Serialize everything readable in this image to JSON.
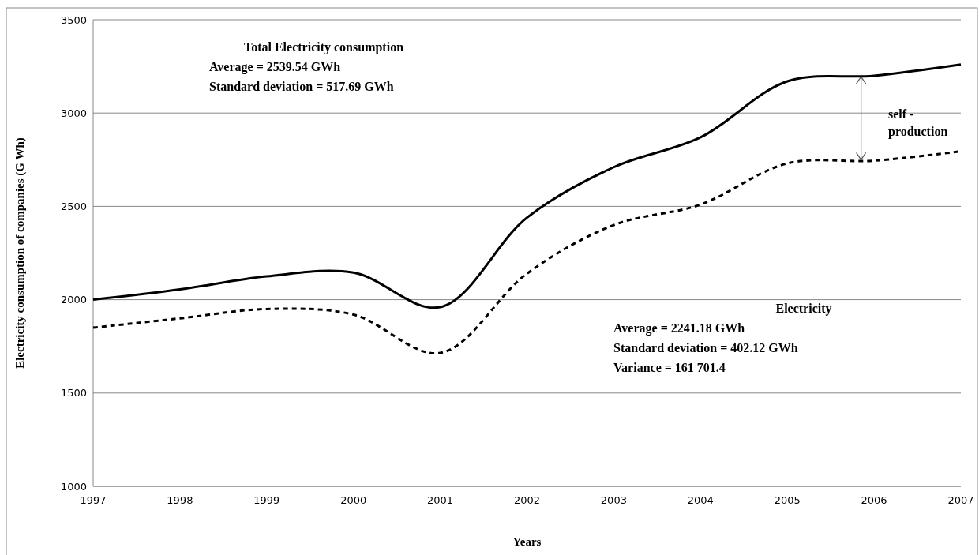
{
  "chart_data": {
    "type": "line",
    "xlabel": "Years",
    "ylabel": "Electricity consumption of companies  (G Wh)",
    "x": [
      1997,
      1998,
      1999,
      2000,
      2001,
      2002,
      2003,
      2004,
      2005,
      2006,
      2007
    ],
    "series": [
      {
        "color": "#000000",
        "line_style": "solid",
        "values": [
          2000,
          2055,
          2125,
          2145,
          1960,
          2440,
          2710,
          2870,
          3170,
          3200,
          3260
        ]
      },
      {
        "color": "#000000",
        "line_style": "dashed",
        "values": [
          1850,
          1900,
          1950,
          1920,
          1715,
          2140,
          2400,
          2510,
          2730,
          2745,
          2795
        ]
      }
    ],
    "xlim": [
      1997,
      2007
    ],
    "xticks": [
      1997,
      1998,
      1999,
      2000,
      2001,
      2002,
      2003,
      2004,
      2005,
      2006,
      2007
    ],
    "ylim": [
      1000,
      3500
    ],
    "yticks": [
      1000,
      1500,
      2000,
      2500,
      3000,
      3500
    ],
    "grid": "y",
    "marker": "none",
    "annotations": [
      "Total Electricity consumption",
      "Average  = 2539.54 GWh",
      "Standard deviation = 517.69 GWh",
      "Electricity",
      "Average  = 2241.18 GWh",
      "Standard deviation = 402.12 GWh",
      "Variance = 161 701.4",
      "self - production"
    ]
  }
}
